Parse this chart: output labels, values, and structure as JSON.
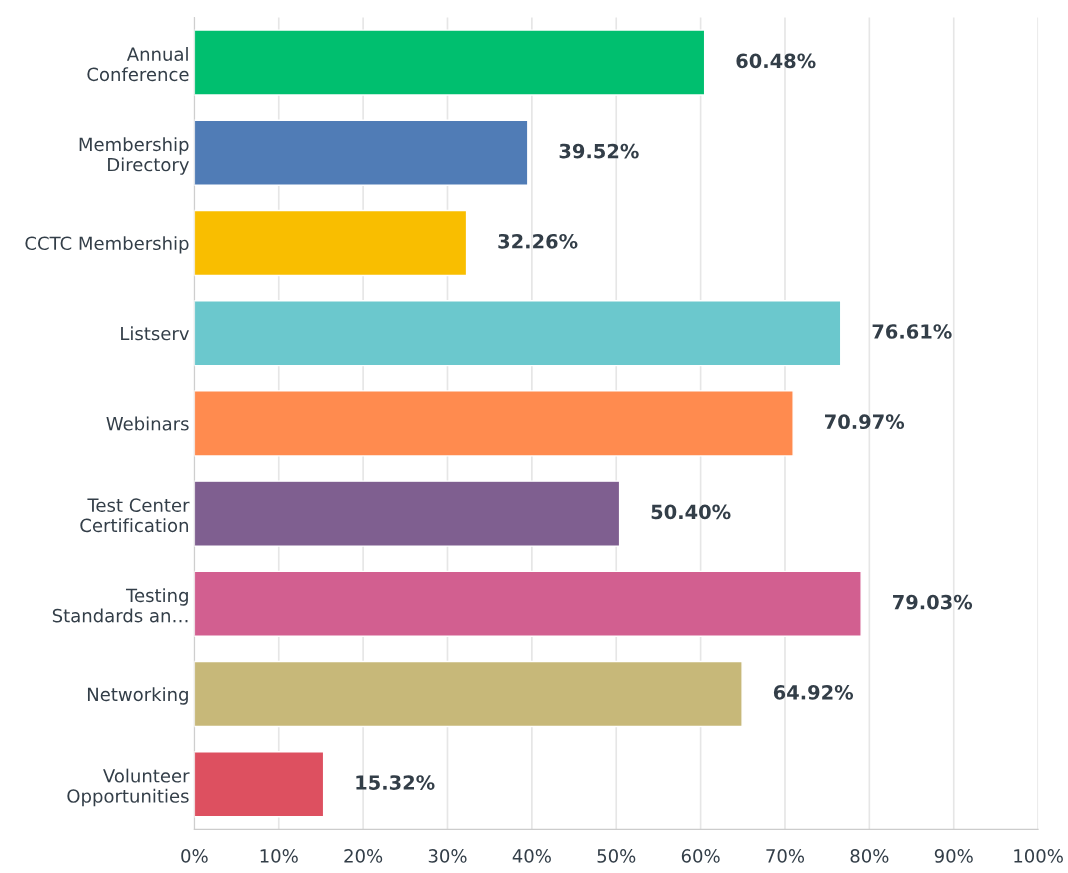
{
  "chart_data": {
    "type": "bar",
    "orientation": "horizontal",
    "categories": [
      "Annual\nConference",
      "Membership\nDirectory",
      "CCTC Membership",
      "Listserv",
      "Webinars",
      "Test Center\nCertification",
      "Testing\nStandards an…",
      "Networking",
      "Volunteer\nOpportunities"
    ],
    "values": [
      60.48,
      39.52,
      32.26,
      76.61,
      70.97,
      50.4,
      79.03,
      64.92,
      15.32
    ],
    "value_labels": [
      "60.48%",
      "39.52%",
      "32.26%",
      "76.61%",
      "70.97%",
      "50.40%",
      "79.03%",
      "64.92%",
      "15.32%"
    ],
    "colors": [
      "#00bf6f",
      "#507cb6",
      "#f9be00",
      "#6bc8cd",
      "#ff8b4f",
      "#7f5f90",
      "#d25f90",
      "#c7b879",
      "#dd5060"
    ],
    "xlim": [
      0,
      100
    ],
    "xticks": [
      {
        "value": 0,
        "label": "0%"
      },
      {
        "value": 10,
        "label": "10%"
      },
      {
        "value": 20,
        "label": "20%"
      },
      {
        "value": 30,
        "label": "30%"
      },
      {
        "value": 40,
        "label": "40%"
      },
      {
        "value": 50,
        "label": "50%"
      },
      {
        "value": 60,
        "label": "60%"
      },
      {
        "value": 70,
        "label": "70%"
      },
      {
        "value": 80,
        "label": "80%"
      },
      {
        "value": 90,
        "label": "90%"
      },
      {
        "value": 100,
        "label": "100%"
      }
    ],
    "grid": "x",
    "legend": false
  }
}
